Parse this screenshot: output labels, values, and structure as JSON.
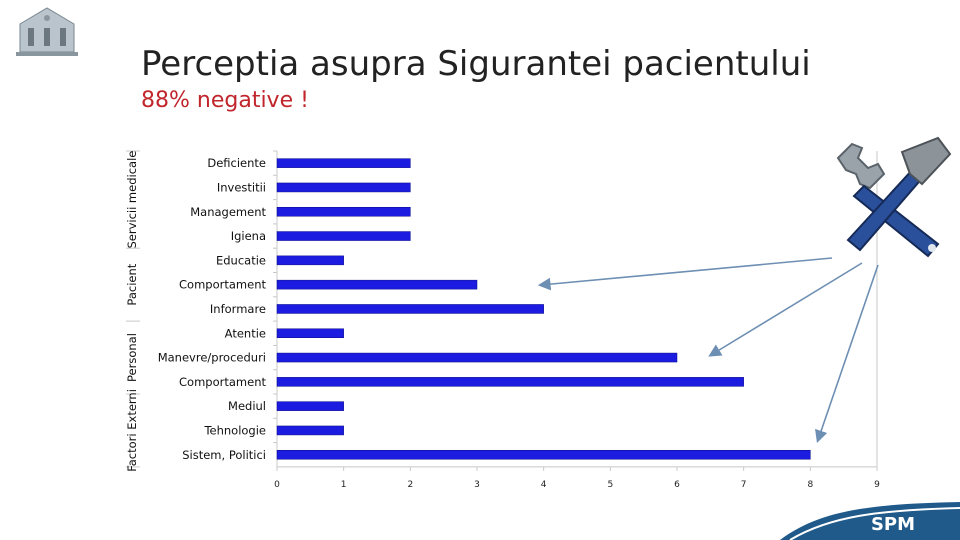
{
  "slide": {
    "title": "Perceptia asupra Sigurantei pacientului",
    "subtitle": "88% negative !",
    "footer_brand": "SPM"
  },
  "colors": {
    "bar": "#1c1ce0",
    "subtitle": "#c0262c",
    "arrow": "#6d8fb3",
    "footer": "#1f5a8a"
  },
  "chart_data": {
    "type": "bar",
    "orientation": "horizontal",
    "categories": [
      "Deficiente",
      "Investitii",
      "Management",
      "Igiena",
      "Educatie",
      "Comportament",
      "Informare",
      "Atentie",
      "Manevre/proceduri",
      "Comportament",
      "Mediul",
      "Tehnologie",
      "Sistem, Politici"
    ],
    "values": [
      2,
      2,
      2,
      2,
      1,
      3,
      4,
      1,
      6,
      7,
      1,
      1,
      8
    ],
    "groups": [
      {
        "label": "Servicii medicale",
        "count": 4
      },
      {
        "label": "Pacient",
        "count": 3
      },
      {
        "label": "Personal",
        "count": 3
      },
      {
        "label": "Factori Externi",
        "count": 3
      }
    ],
    "xlim": [
      0,
      9
    ],
    "xticks": [
      "0",
      "1",
      "2",
      "3",
      "4",
      "5",
      "6",
      "7",
      "8",
      "9"
    ],
    "grid": false
  },
  "icons": {
    "logo": "building-crest-icon",
    "tools": "wrench-hammer-icon"
  }
}
